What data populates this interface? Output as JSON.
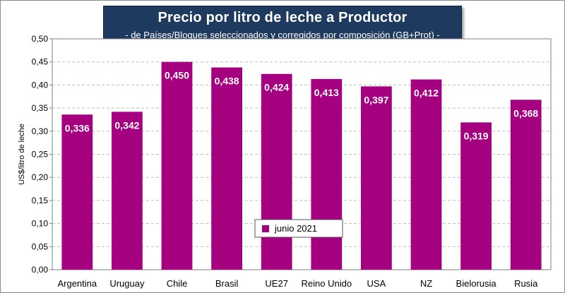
{
  "chart_data": {
    "type": "bar",
    "title": "Precio por litro de leche a Productor",
    "subtitle": "-  de Países/Bloques seleccionados y corregidos por composición (GB+Prot) -",
    "xlabel": "",
    "ylabel": "US$/litro de leche",
    "ylim": [
      0,
      0.5
    ],
    "yticks": [
      "0,00",
      "0,05",
      "0,10",
      "0,15",
      "0,20",
      "0,25",
      "0,30",
      "0,35",
      "0,40",
      "0,45",
      "0,50"
    ],
    "categories": [
      "Argentina",
      "Uruguay",
      "Chile",
      "Brasil",
      "UE27",
      "Reino Unido",
      "USA",
      "NZ",
      "Bielorusia",
      "Rusia"
    ],
    "series": [
      {
        "name": "junio 2021",
        "values": [
          0.336,
          0.342,
          0.45,
          0.438,
          0.424,
          0.413,
          0.397,
          0.412,
          0.319,
          0.368
        ],
        "labels": [
          "0,336",
          "0,342",
          "0,450",
          "0,438",
          "0,424",
          "0,413",
          "0,397",
          "0,412",
          "0,319",
          "0,368"
        ],
        "color": "#a5007f"
      }
    ],
    "grid": true,
    "legend": "bottom-center inside plot",
    "colors": {
      "plot_background": "#ffffff",
      "gridline": "#bdbdbd",
      "title_box": "#1f3a5f"
    }
  }
}
